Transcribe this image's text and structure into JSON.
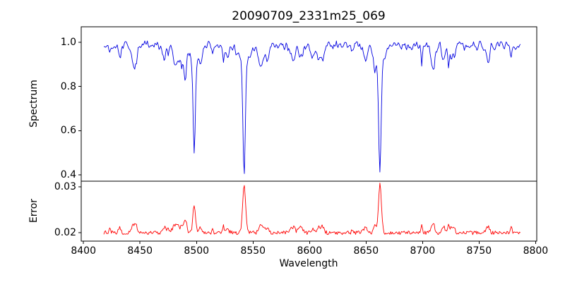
{
  "chart_data": {
    "type": "line",
    "title": "20090709_2331m25_069",
    "xlabel": "Wavelength",
    "background": "#ffffff",
    "frame_color": "#000000",
    "x_axis": {
      "lim": [
        8398,
        8801
      ],
      "ticks": [
        8400,
        8450,
        8500,
        8550,
        8600,
        8650,
        8700,
        8750,
        8800
      ],
      "data_range": [
        8418,
        8787
      ]
    },
    "sample_step": 0.74,
    "seed": 20090709,
    "panels": [
      {
        "name": "spectrum",
        "ylabel": "Spectrum",
        "ylim": [
          0.371,
          1.07
        ],
        "ticks": [
          0.4,
          0.6,
          0.8,
          1.0
        ],
        "tick_labels": [
          "0.4",
          "0.6",
          "0.8",
          "1.0"
        ],
        "color": "#0000e0",
        "continuum": 0.985,
        "noise_amplitude": 0.04,
        "absorption_lines": [
          {
            "center": 8498.0,
            "min_value": 0.56,
            "core_depth": 0.35,
            "core_width": 1.3,
            "wing_depth": 0.07,
            "wing_width": 5
          },
          {
            "center": 8542.1,
            "min_value": 0.41,
            "core_depth": 0.5,
            "core_width": 1.5,
            "wing_depth": 0.075,
            "wing_width": 7
          },
          {
            "center": 8662.1,
            "min_value": 0.44,
            "core_depth": 0.47,
            "core_width": 1.4,
            "wing_depth": 0.07,
            "wing_width": 6
          }
        ],
        "weak_features": {
          "count": 45,
          "depth_min": 0.015,
          "depth_max": 0.085,
          "width_min": 0.7,
          "width_max": 2.8
        }
      },
      {
        "name": "error",
        "ylabel": "Error",
        "ylim": [
          0.0182,
          0.0312
        ],
        "ticks": [
          0.02,
          0.03
        ],
        "tick_labels": [
          "0.02",
          "0.03"
        ],
        "color": "#ff0000",
        "baseline": 0.02,
        "noise_amplitude": 0.0008,
        "peaks": [
          {
            "center": 8498.0,
            "amplitude": 0.005,
            "width": 1.6
          },
          {
            "center": 8542.1,
            "amplitude": 0.0103,
            "width": 1.9
          },
          {
            "center": 8662.1,
            "amplitude": 0.0101,
            "width": 1.7
          }
        ]
      }
    ]
  }
}
